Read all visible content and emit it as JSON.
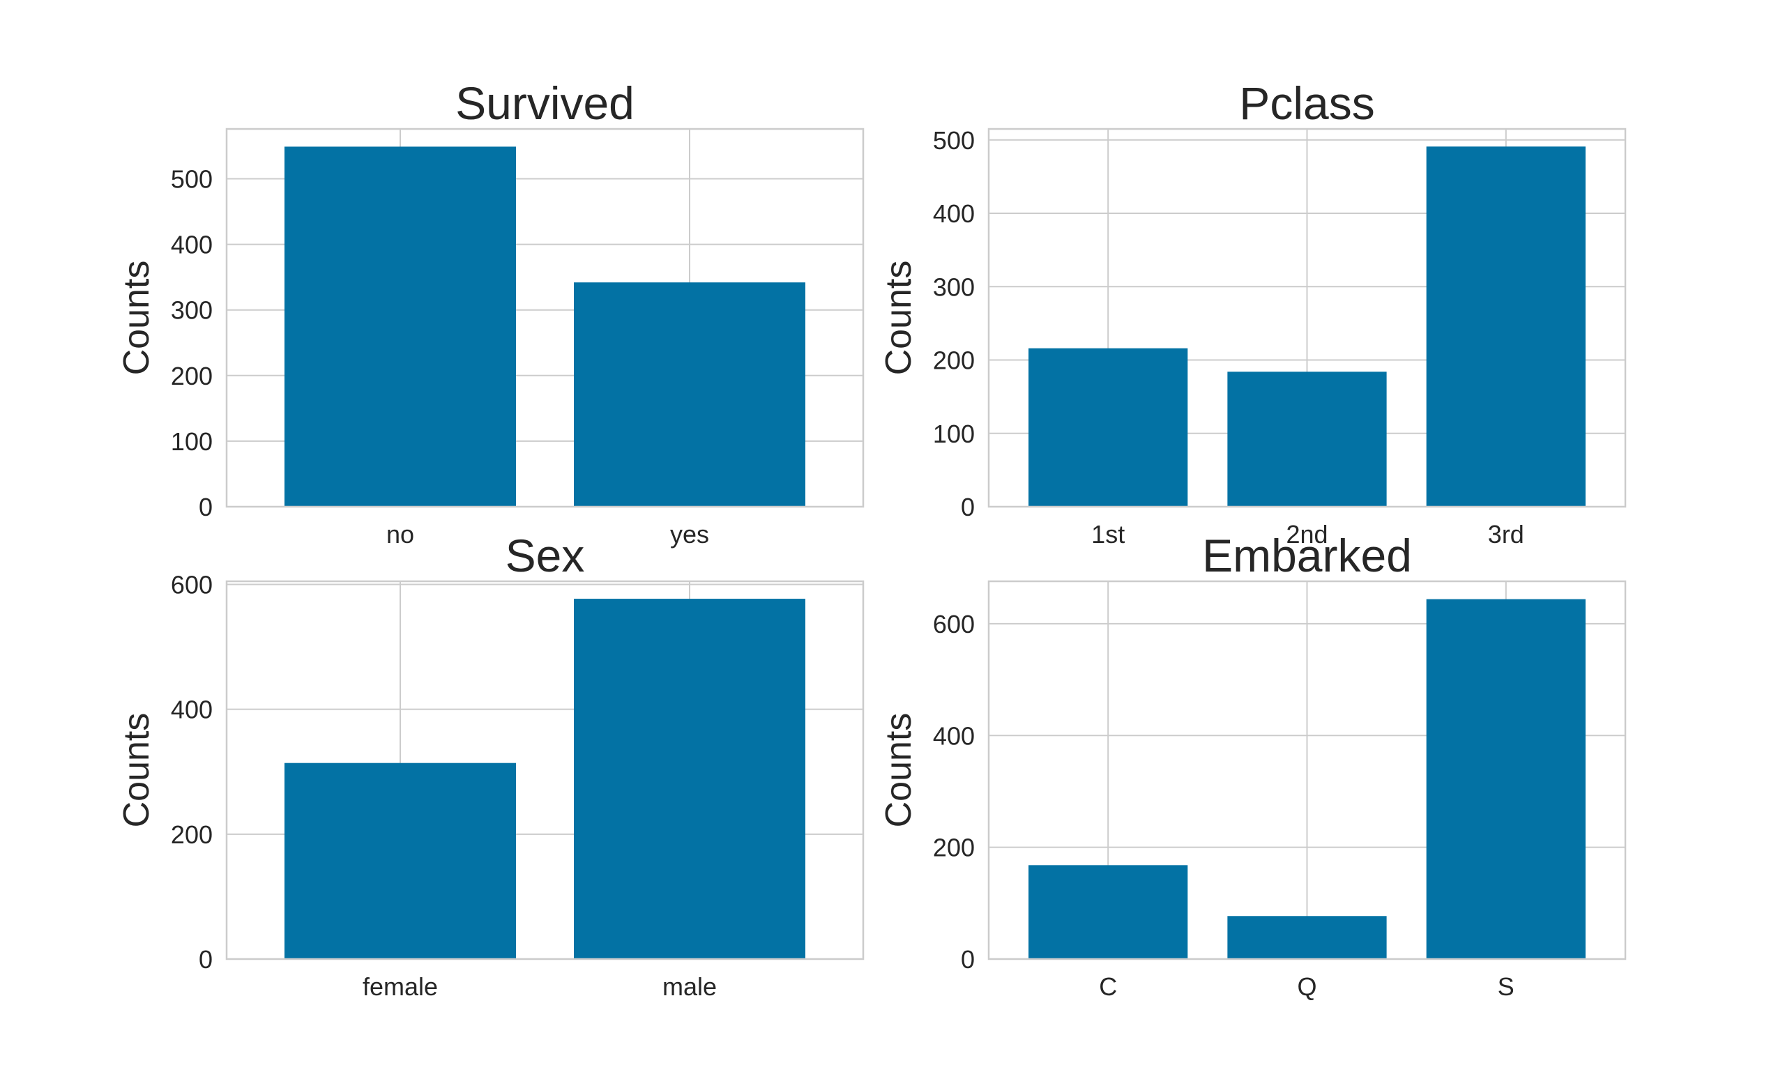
{
  "colors": {
    "bar": "#0372a4",
    "grid": "#cccccc",
    "text": "#262626",
    "background": "#ffffff"
  },
  "chart_data": [
    {
      "type": "bar",
      "title": "Survived",
      "xlabel": "",
      "ylabel": "Counts",
      "categories": [
        "no",
        "yes"
      ],
      "values": [
        549,
        342
      ],
      "ylim": [
        0,
        576
      ],
      "yticks": [
        0,
        100,
        200,
        300,
        400,
        500
      ],
      "grid": true
    },
    {
      "type": "bar",
      "title": "Pclass",
      "xlabel": "",
      "ylabel": "Counts",
      "categories": [
        "1st",
        "2nd",
        "3rd"
      ],
      "values": [
        216,
        184,
        491
      ],
      "ylim": [
        0,
        515
      ],
      "yticks": [
        0,
        100,
        200,
        300,
        400,
        500
      ],
      "grid": true
    },
    {
      "type": "bar",
      "title": "Sex",
      "xlabel": "",
      "ylabel": "Counts",
      "categories": [
        "female",
        "male"
      ],
      "values": [
        314,
        577
      ],
      "ylim": [
        0,
        605
      ],
      "yticks": [
        0,
        200,
        400,
        600
      ],
      "grid": true
    },
    {
      "type": "bar",
      "title": "Embarked",
      "xlabel": "",
      "ylabel": "Counts",
      "categories": [
        "C",
        "Q",
        "S"
      ],
      "values": [
        168,
        77,
        644
      ],
      "ylim": [
        0,
        676
      ],
      "yticks": [
        0,
        200,
        400,
        600
      ],
      "grid": true
    }
  ]
}
